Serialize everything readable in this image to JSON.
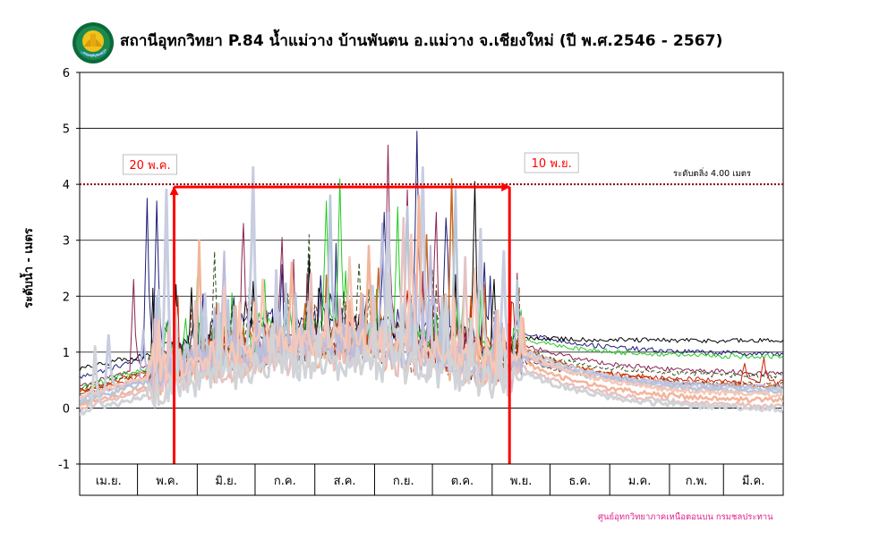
{
  "title": "สถานีอุทกวิทยา P.84 น้ำแม่วาง บ้านพันตน อ.แม่วาง จ.เชียงใหม่ (ปี พ.ศ.2546 - 2567)",
  "credit": "ศูนย์อุทกวิทยาภาคเหนือตอนบน กรมชลประทาน",
  "logo_text": "กรมชลประทาน",
  "chart_data": {
    "type": "line",
    "ylabel": "ระดับน้ำ - เมตร",
    "ylim": [
      -1,
      6
    ],
    "yticks": [
      -1,
      0,
      1,
      2,
      3,
      4,
      5,
      6
    ],
    "grid": true,
    "x_unit": "day-of-water-year",
    "xlim": [
      0,
      365
    ],
    "months": [
      {
        "label": "เม.ย.",
        "days": 30
      },
      {
        "label": "พ.ค.",
        "days": 31
      },
      {
        "label": "มิ.ย.",
        "days": 30
      },
      {
        "label": "ก.ค.",
        "days": 31
      },
      {
        "label": "ส.ค.",
        "days": 31
      },
      {
        "label": "ก.ย.",
        "days": 30
      },
      {
        "label": "ต.ค.",
        "days": 31
      },
      {
        "label": "พ.ย.",
        "days": 30
      },
      {
        "label": "ธ.ค.",
        "days": 31
      },
      {
        "label": "ม.ค.",
        "days": 31
      },
      {
        "label": "ก.พ.",
        "days": 28
      },
      {
        "label": "มี.ค.",
        "days": 31
      }
    ],
    "critical_level": {
      "value": 4.0,
      "label": "ระดับตลิ่ง 4.00 เมตร",
      "color": "#8b0000"
    },
    "flood_window": {
      "start_label": "20 พ.ค.",
      "start_x": 49,
      "end_label": "10 พ.ย.",
      "end_x": 223,
      "top_y": 4.0,
      "bottom_y": -1,
      "color": "#ff0000"
    },
    "series": [
      {
        "color": "#1f1f7a",
        "width": 1.0,
        "dash": "",
        "base": 0.55,
        "wet": 1.55,
        "dry": 0.95,
        "peaks": [
          [
            35,
            3.75
          ],
          [
            40,
            3.7
          ],
          [
            158,
            3.5
          ],
          [
            175,
            4.95
          ],
          [
            190,
            3.4
          ],
          [
            210,
            2.6
          ],
          [
            228,
            1.75
          ]
        ]
      },
      {
        "color": "#000000",
        "width": 1.0,
        "dash": "",
        "base": 0.7,
        "wet": 1.4,
        "dry": 1.2,
        "peaks": [
          [
            20,
            0.9
          ],
          [
            150,
            2.9
          ],
          [
            205,
            4.05
          ],
          [
            215,
            2.3
          ]
        ]
      },
      {
        "color": "#8b2252",
        "width": 1.0,
        "dash": "",
        "base": 0.4,
        "wet": 1.35,
        "dry": 0.6,
        "peaks": [
          [
            28,
            2.3
          ],
          [
            85,
            3.3
          ],
          [
            105,
            3.05
          ],
          [
            160,
            4.7
          ],
          [
            170,
            3.9
          ],
          [
            185,
            3.5
          ]
        ]
      },
      {
        "color": "#22cc22",
        "width": 1.0,
        "dash": "",
        "base": 0.35,
        "wet": 1.4,
        "dry": 0.9,
        "peaks": [
          [
            55,
            1.6
          ],
          [
            128,
            3.7
          ],
          [
            135,
            4.1
          ],
          [
            165,
            3.6
          ],
          [
            200,
            2.7
          ]
        ]
      },
      {
        "color": "#cc6622",
        "width": 1.5,
        "dash": "",
        "base": 0.3,
        "wet": 1.3,
        "dry": 0.35,
        "peaks": [
          [
            155,
            2.5
          ],
          [
            193,
            4.1
          ],
          [
            180,
            3.1
          ],
          [
            210,
            2.2
          ]
        ]
      },
      {
        "color": "#335522",
        "width": 1.0,
        "dash": "5,3",
        "base": 0.35,
        "wet": 1.2,
        "dry": 0.55,
        "peaks": [
          [
            70,
            2.8
          ],
          [
            88,
            2.2
          ],
          [
            119,
            3.1
          ],
          [
            145,
            2.6
          ],
          [
            200,
            2.4
          ]
        ]
      },
      {
        "color": "#cc2200",
        "width": 1.0,
        "dash": "",
        "base": 0.3,
        "wet": 1.1,
        "dry": 0.45,
        "peaks": [
          [
            120,
            1.4
          ],
          [
            170,
            2.1
          ],
          [
            345,
            0.8
          ],
          [
            355,
            0.9
          ]
        ]
      },
      {
        "color": "#7a3a1a",
        "width": 1.0,
        "dash": "6,3",
        "base": 0.25,
        "wet": 1.0,
        "dry": 0.4,
        "peaks": [
          [
            102,
            2.1
          ],
          [
            138,
            1.9
          ],
          [
            185,
            2.2
          ]
        ]
      },
      {
        "color": "#c8cde0",
        "width": 3.0,
        "dash": "",
        "base": 0.15,
        "wet": 1.25,
        "dry": 0.3,
        "peaks": [
          [
            15,
            1.3
          ],
          [
            45,
            3.9
          ],
          [
            90,
            4.3
          ],
          [
            160,
            3.5
          ],
          [
            178,
            4.3
          ],
          [
            208,
            3.2
          ],
          [
            220,
            2.8
          ]
        ]
      },
      {
        "color": "#f3b59a",
        "width": 2.5,
        "dash": "",
        "base": 0.05,
        "wet": 1.0,
        "dry": 0.1,
        "peaks": [
          [
            62,
            3.0
          ],
          [
            110,
            2.6
          ],
          [
            150,
            2.9
          ],
          [
            176,
            3.8
          ],
          [
            230,
            1.6
          ]
        ]
      },
      {
        "color": "#b8c6d8",
        "width": 2.5,
        "dash": "",
        "base": 0.1,
        "wet": 1.15,
        "dry": 0.25,
        "peaks": [
          [
            40,
            2.0
          ],
          [
            130,
            3.8
          ],
          [
            170,
            3.6
          ],
          [
            195,
            3.9
          ]
        ]
      },
      {
        "color": "#e6c2c2",
        "width": 2.5,
        "dash": "",
        "base": 0.0,
        "wet": 0.9,
        "dry": 0.0,
        "peaks": [
          [
            50,
            1.8
          ],
          [
            120,
            2.4
          ],
          [
            168,
            3.4
          ],
          [
            200,
            2.7
          ]
        ]
      },
      {
        "color": "#bbbbdd",
        "width": 2.0,
        "dash": "",
        "base": 0.2,
        "wet": 1.1,
        "dry": 0.35,
        "peaks": [
          [
            33,
            1.4
          ],
          [
            75,
            2.8
          ],
          [
            157,
            3.3
          ],
          [
            182,
            2.9
          ]
        ]
      },
      {
        "color": "#f5c8b8",
        "width": 2.5,
        "dash": "",
        "base": 0.2,
        "wet": 1.2,
        "dry": 0.2,
        "peaks": [
          [
            95,
            2.3
          ],
          [
            140,
            2.7
          ],
          [
            172,
            3.1
          ],
          [
            205,
            2.5
          ]
        ]
      },
      {
        "color": "#d0d4d8",
        "width": 3.0,
        "dash": "",
        "base": -0.1,
        "wet": 0.8,
        "dry": -0.05,
        "peaks": [
          [
            8,
            1.1
          ],
          [
            100,
            1.5
          ],
          [
            160,
            2.4
          ],
          [
            190,
            2.0
          ]
        ]
      }
    ]
  }
}
